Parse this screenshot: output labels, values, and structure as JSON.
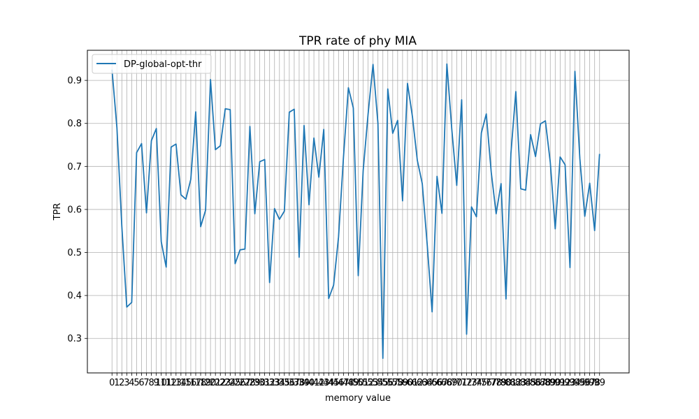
{
  "chart_data": {
    "type": "line",
    "title": "TPR rate of phy MIA",
    "xlabel": "memory value",
    "ylabel": "TPR",
    "x": [
      0,
      1,
      2,
      3,
      4,
      5,
      6,
      7,
      8,
      9,
      10,
      11,
      12,
      13,
      14,
      15,
      16,
      17,
      18,
      19,
      20,
      21,
      22,
      23,
      24,
      25,
      26,
      27,
      28,
      29,
      30,
      31,
      32,
      33,
      34,
      35,
      36,
      37,
      38,
      39,
      40,
      41,
      42,
      43,
      44,
      45,
      46,
      47,
      48,
      49,
      50,
      51,
      52,
      53,
      54,
      55,
      56,
      57,
      58,
      59,
      60,
      61,
      62,
      63,
      64,
      65,
      66,
      67,
      68,
      69,
      70,
      71,
      72,
      73,
      74,
      75,
      76,
      77,
      78,
      79,
      80,
      81,
      82,
      83,
      84,
      85,
      86,
      87,
      88,
      89,
      90,
      91,
      92,
      93,
      94,
      95,
      96,
      97,
      98,
      99
    ],
    "xtick_labels": [
      "0",
      "1",
      "2",
      "3",
      "4",
      "5",
      "6",
      "7",
      "8",
      "9",
      "10",
      "11",
      "12",
      "13",
      "14",
      "15",
      "16",
      "17",
      "18",
      "19",
      "20",
      "21",
      "22",
      "23",
      "24",
      "25",
      "26",
      "27",
      "28",
      "29",
      "30",
      "31",
      "32",
      "33",
      "34",
      "35",
      "36",
      "37",
      "38",
      "39",
      "40",
      "41",
      "42",
      "43",
      "44",
      "45",
      "46",
      "47",
      "48",
      "49",
      "50",
      "51",
      "52",
      "53",
      "54",
      "55",
      "56",
      "57",
      "58",
      "59",
      "60",
      "61",
      "62",
      "63",
      "64",
      "65",
      "66",
      "67",
      "68",
      "69",
      "70",
      "71",
      "72",
      "73",
      "74",
      "75",
      "76",
      "77",
      "78",
      "79",
      "80",
      "81",
      "82",
      "83",
      "84",
      "85",
      "86",
      "87",
      "88",
      "89",
      "90",
      "91",
      "92",
      "93",
      "94",
      "95",
      "96",
      "97",
      "98",
      "99"
    ],
    "yticks": [
      0.3,
      0.4,
      0.5,
      0.6,
      0.7,
      0.8,
      0.9
    ],
    "ytick_labels": [
      "0.3",
      "0.4",
      "0.5",
      "0.6",
      "0.7",
      "0.8",
      "0.9"
    ],
    "xlim": [
      -5,
      105
    ],
    "ylim": [
      0.22,
      0.97
    ],
    "grid": true,
    "legend_position": "upper left",
    "series": [
      {
        "name": "DP-global-opt-thr",
        "color": "#1f77b4",
        "values": [
          0.925,
          0.79,
          0.56,
          0.373,
          0.384,
          0.732,
          0.753,
          0.592,
          0.76,
          0.788,
          0.525,
          0.466,
          0.745,
          0.752,
          0.634,
          0.624,
          0.67,
          0.827,
          0.56,
          0.598,
          0.902,
          0.739,
          0.748,
          0.834,
          0.832,
          0.474,
          0.506,
          0.508,
          0.793,
          0.59,
          0.711,
          0.716,
          0.43,
          0.602,
          0.577,
          0.596,
          0.826,
          0.833,
          0.489,
          0.795,
          0.611,
          0.766,
          0.675,
          0.786,
          0.393,
          0.424,
          0.536,
          0.721,
          0.883,
          0.836,
          0.446,
          0.69,
          0.822,
          0.937,
          0.8,
          0.254,
          0.88,
          0.777,
          0.807,
          0.62,
          0.893,
          0.816,
          0.714,
          0.66,
          0.519,
          0.362,
          0.677,
          0.591,
          0.938,
          0.786,
          0.656,
          0.855,
          0.31,
          0.606,
          0.583,
          0.778,
          0.822,
          0.687,
          0.59,
          0.66,
          0.392,
          0.73,
          0.874,
          0.648,
          0.645,
          0.774,
          0.723,
          0.799,
          0.806,
          0.709,
          0.555,
          0.722,
          0.704,
          0.465,
          0.921,
          0.718,
          0.584,
          0.661,
          0.551,
          0.729
        ]
      }
    ]
  }
}
